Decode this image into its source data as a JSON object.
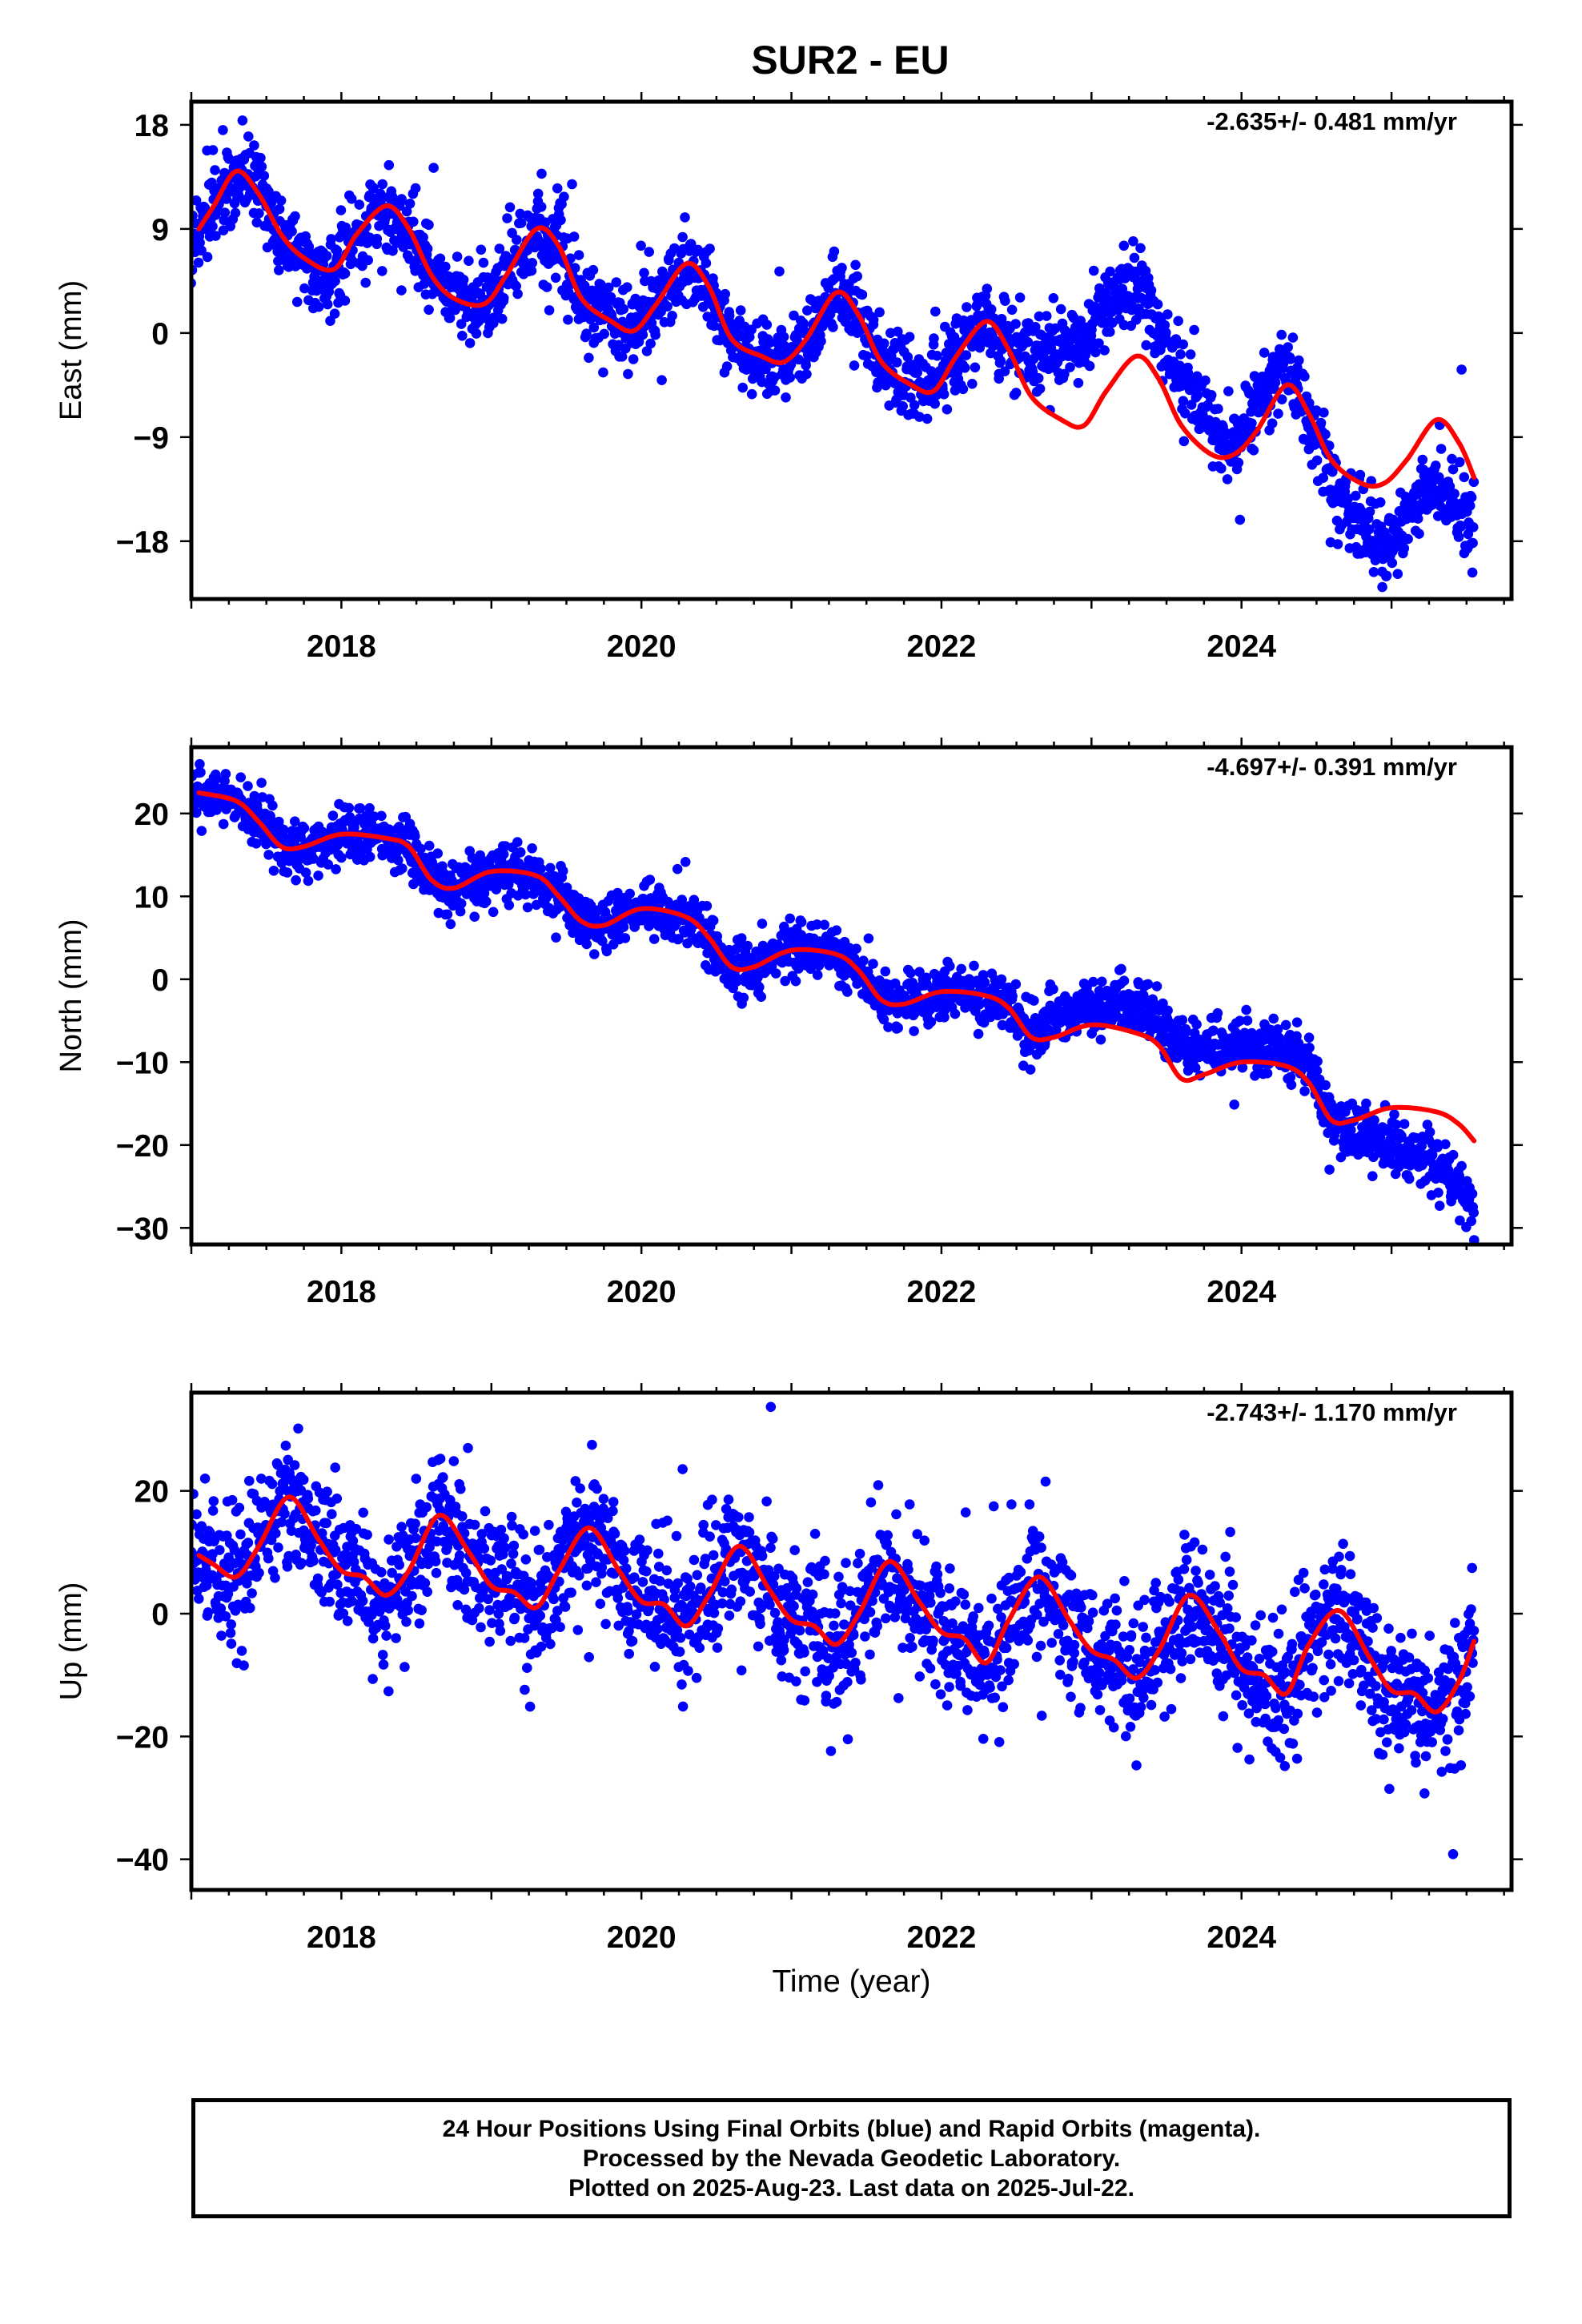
{
  "figure": {
    "title": "SUR2 - EU",
    "colors": {
      "data": "#0000ff",
      "fit": "#ff0000",
      "axes": "#000000"
    }
  },
  "chart_data": [
    {
      "type": "scatter",
      "panel": "east",
      "ylabel": "East (mm)",
      "rate": "-2.635+/- 0.481 mm/yr",
      "xlim": [
        2017.0,
        2025.8
      ],
      "ylim": [
        -23,
        20
      ],
      "yticks": [
        18,
        9,
        0,
        -9,
        -18
      ],
      "ytick_labels": [
        "18",
        "9",
        "0",
        "−9",
        "−18"
      ],
      "xticks": [
        2018,
        2020,
        2022,
        2024
      ],
      "xtick_labels": [
        "2018",
        "2020",
        "2022",
        "2024"
      ],
      "series": [
        {
          "kind": "fit",
          "x": [
            2017.05,
            2017.15,
            2017.3,
            2017.45,
            2017.6,
            2017.75,
            2017.95,
            2018.1,
            2018.3,
            2018.45,
            2018.6,
            2018.75,
            2018.95,
            2019.1,
            2019.3,
            2019.45,
            2019.6,
            2019.8,
            2019.95,
            2020.1,
            2020.3,
            2020.45,
            2020.6,
            2020.8,
            2020.95,
            2021.1,
            2021.3,
            2021.45,
            2021.6,
            2021.8,
            2021.95,
            2022.1,
            2022.3,
            2022.45,
            2022.6,
            2022.8,
            2022.95,
            2023.1,
            2023.3,
            2023.45,
            2023.6,
            2023.8,
            2023.95,
            2024.1,
            2024.3,
            2024.45,
            2024.6,
            2024.8,
            2024.95,
            2025.1,
            2025.3,
            2025.45,
            2025.55
          ],
          "y": [
            9,
            11,
            14,
            12,
            8.5,
            6.5,
            5.5,
            8.5,
            11,
            9,
            5,
            3,
            2.5,
            5,
            9,
            7.5,
            3,
            1,
            0.2,
            2.5,
            6,
            4,
            -0.5,
            -2,
            -2.5,
            -0.5,
            3.5,
            1.5,
            -2.5,
            -4.5,
            -5,
            -2,
            1,
            -1.5,
            -5.5,
            -7.5,
            -8,
            -5,
            -2,
            -4,
            -8,
            -10.5,
            -10.5,
            -8.5,
            -4.5,
            -7,
            -11,
            -13,
            -13,
            -11,
            -7.5,
            -9.5,
            -12.5
          ]
        },
        {
          "kind": "points",
          "period": [
            2017.0,
            2025.55
          ],
          "x_start": 2017.0,
          "x_end": 2025.55,
          "center_anchors": [
            [
              2017.05,
              9
            ],
            [
              2017.15,
              11
            ],
            [
              2017.3,
              14
            ],
            [
              2017.45,
              12
            ],
            [
              2017.6,
              8.5
            ],
            [
              2017.75,
              6.5
            ],
            [
              2017.95,
              5.5
            ],
            [
              2018.1,
              8.5
            ],
            [
              2018.3,
              11
            ],
            [
              2018.45,
              9
            ],
            [
              2018.6,
              5
            ],
            [
              2018.75,
              3
            ],
            [
              2018.95,
              2.5
            ],
            [
              2019.1,
              5
            ],
            [
              2019.3,
              9
            ],
            [
              2019.45,
              7.5
            ],
            [
              2019.6,
              3
            ],
            [
              2019.8,
              1
            ],
            [
              2019.95,
              0.2
            ],
            [
              2020.1,
              2.5
            ],
            [
              2020.3,
              6
            ],
            [
              2020.45,
              4
            ],
            [
              2020.6,
              -0.5
            ],
            [
              2020.8,
              -2
            ],
            [
              2020.95,
              -2.5
            ],
            [
              2021.1,
              -0.5
            ],
            [
              2021.3,
              3.5
            ],
            [
              2021.45,
              1.5
            ],
            [
              2021.6,
              -2.5
            ],
            [
              2021.8,
              -4.5
            ],
            [
              2021.95,
              -5
            ],
            [
              2022.1,
              -2
            ],
            [
              2022.3,
              1
            ],
            [
              2022.45,
              -1.5
            ],
            [
              2022.6,
              -1.5
            ],
            [
              2022.8,
              -1.5
            ],
            [
              2022.95,
              -0.5
            ],
            [
              2023.1,
              2.5
            ],
            [
              2023.3,
              5
            ],
            [
              2023.45,
              0
            ],
            [
              2023.6,
              -4
            ],
            [
              2023.8,
              -8
            ],
            [
              2023.95,
              -9.5
            ],
            [
              2024.1,
              -6.5
            ],
            [
              2024.3,
              -2.5
            ],
            [
              2024.45,
              -7
            ],
            [
              2024.6,
              -13
            ],
            [
              2024.8,
              -16
            ],
            [
              2024.95,
              -19
            ],
            [
              2025.1,
              -16
            ],
            [
              2025.3,
              -13
            ],
            [
              2025.45,
              -15
            ],
            [
              2025.55,
              -17.5
            ]
          ],
          "scatter_sd": 1.7,
          "count": 2300
        }
      ]
    },
    {
      "type": "scatter",
      "panel": "north",
      "ylabel": "North (mm)",
      "rate": "-4.697+/- 0.391 mm/yr",
      "xlim": [
        2017.0,
        2025.8
      ],
      "ylim": [
        -32,
        28
      ],
      "yticks": [
        20,
        10,
        0,
        -10,
        -20,
        -30
      ],
      "ytick_labels": [
        "20",
        "10",
        "0",
        "−10",
        "−20",
        "−30"
      ],
      "xticks": [
        2018,
        2020,
        2022,
        2024
      ],
      "xtick_labels": [
        "2018",
        "2020",
        "2022",
        "2024"
      ],
      "series": [
        {
          "kind": "fit",
          "x": [
            2017.05,
            2017.3,
            2017.45,
            2017.6,
            2017.75,
            2018.0,
            2018.3,
            2018.45,
            2018.6,
            2018.75,
            2019.0,
            2019.3,
            2019.45,
            2019.6,
            2019.75,
            2020.0,
            2020.3,
            2020.45,
            2020.6,
            2020.75,
            2021.0,
            2021.3,
            2021.45,
            2021.6,
            2021.75,
            2022.0,
            2022.3,
            2022.45,
            2022.6,
            2022.75,
            2023.0,
            2023.3,
            2023.45,
            2023.6,
            2023.75,
            2024.0,
            2024.3,
            2024.45,
            2024.6,
            2024.75,
            2025.0,
            2025.3,
            2025.45,
            2025.55
          ],
          "y": [
            22.5,
            21.5,
            19,
            16,
            16,
            17.5,
            17,
            16,
            12,
            11,
            13,
            12.5,
            10,
            7,
            6.5,
            8.5,
            7.5,
            5,
            1.5,
            1.5,
            3.5,
            3,
            1,
            -2.5,
            -3,
            -1.5,
            -2,
            -3.5,
            -7,
            -7,
            -5.5,
            -6.5,
            -8,
            -12,
            -11.5,
            -10,
            -10.5,
            -12.5,
            -17,
            -17,
            -15.5,
            -16,
            -17.5,
            -19.5
          ]
        },
        {
          "kind": "points",
          "period": [
            2017.0,
            2025.55
          ],
          "x_start": 2017.0,
          "x_end": 2025.55,
          "center_anchors": [
            [
              2017.05,
              22.5
            ],
            [
              2017.3,
              21.5
            ],
            [
              2017.45,
              19
            ],
            [
              2017.6,
              16
            ],
            [
              2017.75,
              16
            ],
            [
              2018.0,
              17.5
            ],
            [
              2018.3,
              17
            ],
            [
              2018.45,
              16
            ],
            [
              2018.6,
              12
            ],
            [
              2018.75,
              11
            ],
            [
              2019.0,
              13
            ],
            [
              2019.3,
              12.5
            ],
            [
              2019.45,
              10
            ],
            [
              2019.6,
              7
            ],
            [
              2019.75,
              6.5
            ],
            [
              2020.0,
              8.5
            ],
            [
              2020.3,
              7.5
            ],
            [
              2020.45,
              5
            ],
            [
              2020.6,
              1.5
            ],
            [
              2020.75,
              1.5
            ],
            [
              2021.0,
              3.5
            ],
            [
              2021.3,
              3
            ],
            [
              2021.45,
              1
            ],
            [
              2021.6,
              -2.5
            ],
            [
              2021.75,
              -3
            ],
            [
              2022.0,
              -1.5
            ],
            [
              2022.3,
              -2
            ],
            [
              2022.45,
              -3.5
            ],
            [
              2022.6,
              -7
            ],
            [
              2022.75,
              -5
            ],
            [
              2023.0,
              -3
            ],
            [
              2023.3,
              -3
            ],
            [
              2023.45,
              -5
            ],
            [
              2023.6,
              -8
            ],
            [
              2023.75,
              -8
            ],
            [
              2024.0,
              -8
            ],
            [
              2024.3,
              -8.5
            ],
            [
              2024.45,
              -10
            ],
            [
              2024.6,
              -17
            ],
            [
              2024.75,
              -19
            ],
            [
              2025.0,
              -20
            ],
            [
              2025.3,
              -22
            ],
            [
              2025.45,
              -25
            ],
            [
              2025.55,
              -28
            ]
          ],
          "scatter_sd": 1.6,
          "count": 2300
        }
      ]
    },
    {
      "type": "scatter",
      "panel": "up",
      "ylabel": "Up (mm)",
      "rate": "-2.743+/- 1.170 mm/yr",
      "xlim": [
        2017.0,
        2025.8
      ],
      "ylim": [
        -45,
        36
      ],
      "yticks": [
        20,
        0,
        -20,
        -40
      ],
      "ytick_labels": [
        "20",
        "0",
        "−20",
        "−40"
      ],
      "xticks": [
        2018,
        2020,
        2022,
        2024
      ],
      "xtick_labels": [
        "2018",
        "2020",
        "2022",
        "2024"
      ],
      "xlabel": "Time (year)",
      "series": [
        {
          "kind": "fit",
          "x": [
            2017.05,
            2017.15,
            2017.3,
            2017.45,
            2017.65,
            2017.85,
            2018.0,
            2018.15,
            2018.3,
            2018.45,
            2018.65,
            2018.85,
            2019.0,
            2019.15,
            2019.3,
            2019.45,
            2019.65,
            2019.85,
            2020.0,
            2020.15,
            2020.3,
            2020.45,
            2020.65,
            2020.85,
            2021.0,
            2021.15,
            2021.3,
            2021.45,
            2021.65,
            2021.85,
            2022.0,
            2022.15,
            2022.3,
            2022.45,
            2022.65,
            2022.85,
            2023.0,
            2023.15,
            2023.3,
            2023.45,
            2023.65,
            2023.85,
            2024.0,
            2024.15,
            2024.3,
            2024.45,
            2024.65,
            2024.85,
            2025.0,
            2025.15,
            2025.3,
            2025.45,
            2025.55
          ],
          "y": [
            9.5,
            8,
            6,
            11,
            19,
            12,
            7,
            6,
            3,
            7,
            16,
            10,
            4.5,
            3.5,
            1,
            7,
            14,
            7,
            2,
            1.5,
            -2,
            3,
            11,
            4,
            -1,
            -2,
            -5,
            0,
            8.5,
            2,
            -3,
            -4,
            -8,
            -1,
            6,
            -1,
            -6,
            -7.5,
            -10.5,
            -6,
            3,
            -3,
            -9,
            -10,
            -13,
            -5,
            0.5,
            -7,
            -12.5,
            -13,
            -16,
            -11,
            -4.5
          ]
        },
        {
          "kind": "points",
          "period": [
            2017.0,
            2025.55
          ],
          "x_start": 2017.0,
          "x_end": 2025.55,
          "center_anchors": [
            [
              2017.05,
              9.5
            ],
            [
              2017.15,
              8
            ],
            [
              2017.3,
              6
            ],
            [
              2017.45,
              11
            ],
            [
              2017.65,
              19
            ],
            [
              2017.85,
              12
            ],
            [
              2018.0,
              7
            ],
            [
              2018.15,
              6
            ],
            [
              2018.3,
              3
            ],
            [
              2018.45,
              7
            ],
            [
              2018.65,
              16
            ],
            [
              2018.85,
              10
            ],
            [
              2019.0,
              4.5
            ],
            [
              2019.15,
              3.5
            ],
            [
              2019.3,
              1
            ],
            [
              2019.45,
              7
            ],
            [
              2019.65,
              14
            ],
            [
              2019.85,
              7
            ],
            [
              2020.0,
              2
            ],
            [
              2020.15,
              1.5
            ],
            [
              2020.3,
              -2
            ],
            [
              2020.45,
              3
            ],
            [
              2020.65,
              11
            ],
            [
              2020.85,
              4
            ],
            [
              2021.0,
              -1
            ],
            [
              2021.15,
              -2
            ],
            [
              2021.3,
              -5
            ],
            [
              2021.45,
              0
            ],
            [
              2021.65,
              8.5
            ],
            [
              2021.85,
              2
            ],
            [
              2022.0,
              -3
            ],
            [
              2022.15,
              -4
            ],
            [
              2022.3,
              -8
            ],
            [
              2022.45,
              -1
            ],
            [
              2022.65,
              6
            ],
            [
              2022.85,
              -1
            ],
            [
              2023.0,
              -6
            ],
            [
              2023.15,
              -7.5
            ],
            [
              2023.3,
              -10.5
            ],
            [
              2023.45,
              -6
            ],
            [
              2023.65,
              3
            ],
            [
              2023.85,
              -3
            ],
            [
              2024.0,
              -9
            ],
            [
              2024.15,
              -10
            ],
            [
              2024.3,
              -13
            ],
            [
              2024.45,
              -5
            ],
            [
              2024.65,
              0.5
            ],
            [
              2024.85,
              -7
            ],
            [
              2025.0,
              -12.5
            ],
            [
              2025.15,
              -13
            ],
            [
              2025.3,
              -16
            ],
            [
              2025.45,
              -11
            ],
            [
              2025.55,
              -4.5
            ]
          ],
          "scatter_sd": 5.5,
          "count": 2300
        }
      ]
    }
  ],
  "caption": {
    "line1": "24 Hour Positions Using Final Orbits (blue) and Rapid Orbits (magenta).",
    "line2": "Processed by the Nevada Geodetic Laboratory.",
    "line3": "Plotted on 2025-Aug-23. Last data on 2025-Jul-22."
  }
}
